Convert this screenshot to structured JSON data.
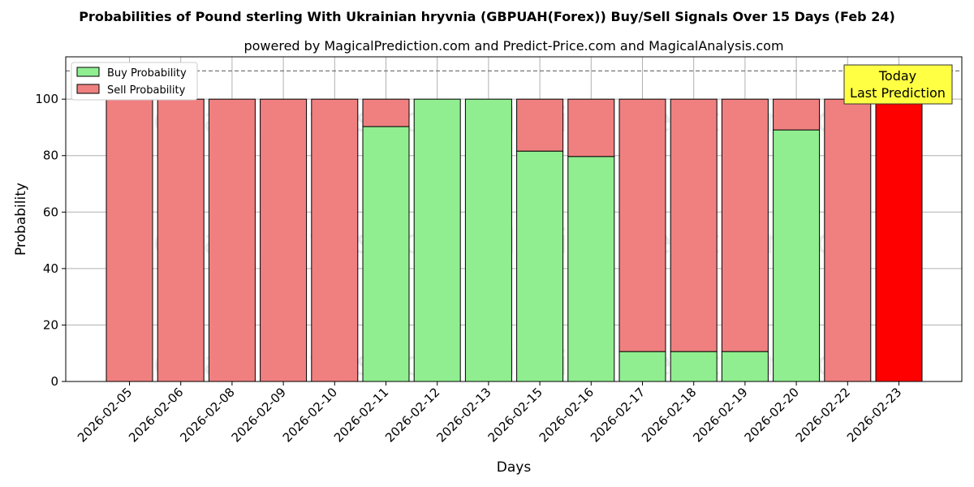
{
  "chart_data": {
    "type": "bar",
    "stacked": true,
    "title": "Probabilities of Pound sterling With Ukrainian hryvnia (GBPUAH(Forex)) Buy/Sell Signals Over 15 Days (Feb 24)",
    "subtitle": "powered by MagicalPrediction.com and Predict-Price.com and MagicalAnalysis.com",
    "xlabel": "Days",
    "ylabel": "Probability",
    "ylim": [
      0,
      115
    ],
    "yticks": [
      0,
      20,
      40,
      60,
      80,
      100
    ],
    "reference_line": 110,
    "grid": true,
    "legend_position": "top-left",
    "categories": [
      "2026-02-05",
      "2026-02-06",
      "2026-02-08",
      "2026-02-09",
      "2026-02-10",
      "2026-02-11",
      "2026-02-12",
      "2026-02-13",
      "2026-02-15",
      "2026-02-16",
      "2026-02-17",
      "2026-02-18",
      "2026-02-19",
      "2026-02-20",
      "2026-02-22",
      "2026-02-23"
    ],
    "series": [
      {
        "name": "Buy Probability",
        "color": "#90ee90",
        "values": [
          0,
          0,
          0,
          0,
          0,
          90.3,
          100,
          100,
          81.6,
          79.7,
          10.6,
          10.6,
          10.6,
          89.1,
          0,
          0
        ]
      },
      {
        "name": "Sell Probability",
        "color": "#f08080",
        "values": [
          100,
          100,
          100,
          100,
          100,
          9.7,
          0,
          0,
          18.4,
          20.3,
          89.4,
          89.4,
          89.4,
          10.9,
          100,
          100
        ]
      }
    ],
    "highlight": {
      "index": 15,
      "color": "#ff0000"
    },
    "annotation": {
      "line1": "Today",
      "line2": "Last Prediction",
      "background": "#ffff44"
    },
    "watermarks": [
      "MagicalAnalysis.com",
      "MagicalPrediction.com"
    ]
  }
}
